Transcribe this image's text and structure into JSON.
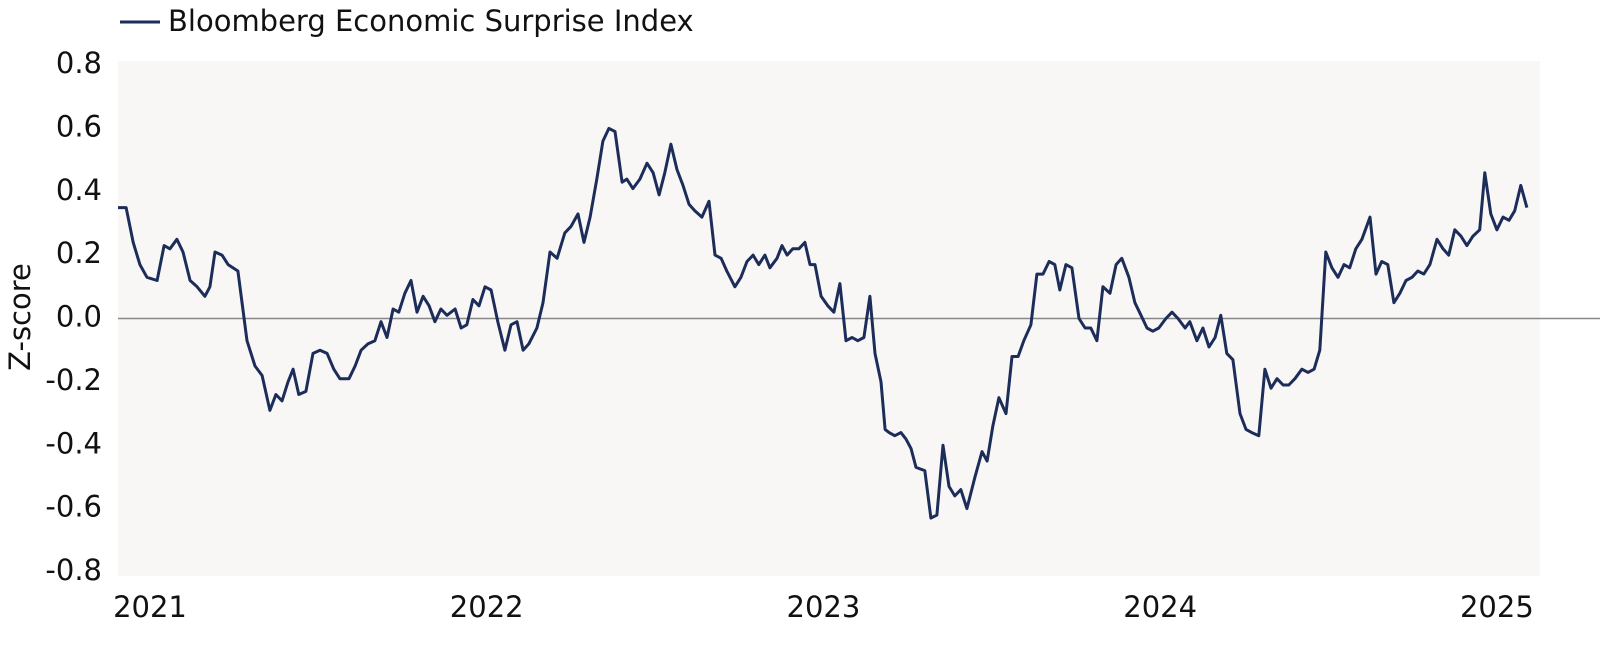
{
  "chart_data": {
    "type": "line",
    "y_label": "Z-score",
    "x": [
      2020.905,
      2020.929,
      2020.95,
      2020.97,
      2020.991,
      2021.021,
      2021.042,
      2021.059,
      2021.08,
      2021.098,
      2021.119,
      2021.14,
      2021.163,
      2021.178,
      2021.193,
      2021.214,
      2021.232,
      2021.261,
      2021.288,
      2021.312,
      2021.333,
      2021.356,
      2021.374,
      2021.392,
      2021.41,
      2021.425,
      2021.442,
      2021.463,
      2021.484,
      2021.505,
      2021.526,
      2021.546,
      2021.564,
      2021.591,
      2021.609,
      2021.627,
      2021.647,
      2021.668,
      2021.686,
      2021.704,
      2021.722,
      2021.739,
      2021.757,
      2021.775,
      2021.793,
      2021.811,
      2021.829,
      2021.846,
      2021.864,
      2021.882,
      2021.906,
      2021.924,
      2021.941,
      2021.959,
      2021.977,
      2021.995,
      2022.013,
      2022.033,
      2022.054,
      2022.072,
      2022.09,
      2022.108,
      2022.125,
      2022.149,
      2022.167,
      2022.188,
      2022.209,
      2022.232,
      2022.25,
      2022.271,
      2022.289,
      2022.307,
      2022.327,
      2022.345,
      2022.363,
      2022.381,
      2022.402,
      2022.416,
      2022.434,
      2022.455,
      2022.476,
      2022.494,
      2022.512,
      2022.529,
      2022.547,
      2022.565,
      2022.583,
      2022.601,
      2022.618,
      2022.639,
      2022.66,
      2022.678,
      2022.696,
      2022.713,
      2022.737,
      2022.755,
      2022.773,
      2022.791,
      2022.808,
      2022.826,
      2022.841,
      2022.862,
      2022.877,
      2022.892,
      2022.909,
      2022.927,
      2022.945,
      2022.96,
      2022.975,
      2022.993,
      2023.013,
      2023.031,
      2023.049,
      2023.067,
      2023.085,
      2023.102,
      2023.12,
      2023.138,
      2023.153,
      2023.171,
      2023.183,
      2023.195,
      2023.212,
      2023.23,
      2023.245,
      2023.26,
      2023.275,
      2023.301,
      2023.319,
      2023.337,
      2023.355,
      2023.373,
      2023.39,
      2023.408,
      2023.426,
      2023.45,
      2023.471,
      2023.486,
      2023.503,
      2023.521,
      2023.542,
      2023.56,
      2023.578,
      2023.595,
      2023.616,
      2023.634,
      2023.652,
      2023.67,
      2023.687,
      2023.702,
      2023.72,
      2023.738,
      2023.759,
      2023.777,
      2023.794,
      2023.812,
      2023.83,
      2023.851,
      2023.869,
      2023.886,
      2023.907,
      2023.925,
      2023.943,
      2023.961,
      2023.978,
      2023.996,
      2024.017,
      2024.035,
      2024.053,
      2024.074,
      2024.088,
      2024.109,
      2024.127,
      2024.145,
      2024.163,
      2024.18,
      2024.198,
      2024.216,
      2024.237,
      2024.255,
      2024.272,
      2024.293,
      2024.311,
      2024.329,
      2024.347,
      2024.365,
      2024.382,
      2024.4,
      2024.421,
      2024.439,
      2024.457,
      2024.474,
      2024.492,
      2024.51,
      2024.528,
      2024.546,
      2024.563,
      2024.581,
      2024.599,
      2024.623,
      2024.641,
      2024.658,
      2024.676,
      2024.694,
      2024.712,
      2024.73,
      2024.748,
      2024.765,
      2024.783,
      2024.801,
      2024.822,
      2024.84,
      2024.857,
      2024.875,
      2024.893,
      2024.911,
      2024.929,
      2024.949,
      2024.964,
      2024.982,
      2025.0,
      2025.018,
      2025.036,
      2025.053,
      2025.071,
      2025.089
    ],
    "series": [
      {
        "name": "Bloomberg Economic Surprise Index",
        "color": "#1c2d5a",
        "values": [
          0.35,
          0.35,
          0.24,
          0.17,
          0.13,
          0.12,
          0.23,
          0.22,
          0.25,
          0.21,
          0.12,
          0.1,
          0.07,
          0.1,
          0.21,
          0.2,
          0.17,
          0.15,
          -0.07,
          -0.15,
          -0.18,
          -0.29,
          -0.24,
          -0.26,
          -0.2,
          -0.16,
          -0.24,
          -0.23,
          -0.11,
          -0.1,
          -0.11,
          -0.16,
          -0.19,
          -0.19,
          -0.15,
          -0.1,
          -0.08,
          -0.07,
          -0.01,
          -0.06,
          0.03,
          0.02,
          0.08,
          0.12,
          0.02,
          0.07,
          0.04,
          -0.01,
          0.03,
          0.01,
          0.03,
          -0.03,
          -0.02,
          0.06,
          0.04,
          0.1,
          0.09,
          -0.01,
          -0.1,
          -0.02,
          -0.01,
          -0.1,
          -0.08,
          -0.03,
          0.05,
          0.21,
          0.19,
          0.27,
          0.29,
          0.33,
          0.24,
          0.32,
          0.44,
          0.56,
          0.6,
          0.59,
          0.43,
          0.44,
          0.41,
          0.44,
          0.49,
          0.46,
          0.39,
          0.46,
          0.55,
          0.47,
          0.42,
          0.36,
          0.34,
          0.32,
          0.37,
          0.2,
          0.19,
          0.15,
          0.1,
          0.13,
          0.18,
          0.2,
          0.17,
          0.2,
          0.16,
          0.19,
          0.23,
          0.2,
          0.22,
          0.22,
          0.24,
          0.17,
          0.17,
          0.07,
          0.04,
          0.02,
          0.11,
          -0.07,
          -0.06,
          -0.07,
          -0.06,
          0.07,
          -0.11,
          -0.2,
          -0.35,
          -0.36,
          -0.37,
          -0.36,
          -0.38,
          -0.41,
          -0.47,
          -0.48,
          -0.63,
          -0.62,
          -0.4,
          -0.53,
          -0.56,
          -0.54,
          -0.6,
          -0.5,
          -0.42,
          -0.45,
          -0.34,
          -0.25,
          -0.3,
          -0.12,
          -0.12,
          -0.07,
          -0.02,
          0.14,
          0.14,
          0.18,
          0.17,
          0.09,
          0.17,
          0.16,
          0.0,
          -0.03,
          -0.03,
          -0.07,
          0.1,
          0.08,
          0.17,
          0.19,
          0.13,
          0.05,
          0.01,
          -0.03,
          -0.04,
          -0.03,
          0.0,
          0.02,
          0.0,
          -0.03,
          -0.01,
          -0.07,
          -0.03,
          -0.09,
          -0.06,
          0.01,
          -0.11,
          -0.13,
          -0.3,
          -0.35,
          -0.36,
          -0.37,
          -0.16,
          -0.22,
          -0.19,
          -0.21,
          -0.21,
          -0.19,
          -0.16,
          -0.17,
          -0.16,
          -0.1,
          0.21,
          0.16,
          0.13,
          0.17,
          0.16,
          0.22,
          0.25,
          0.32,
          0.14,
          0.18,
          0.17,
          0.05,
          0.08,
          0.12,
          0.13,
          0.15,
          0.14,
          0.17,
          0.25,
          0.22,
          0.2,
          0.28,
          0.26,
          0.23,
          0.26,
          0.28,
          0.46,
          0.33,
          0.28,
          0.32,
          0.31,
          0.34,
          0.42,
          0.35
        ]
      }
    ],
    "xlim": [
      2020.905,
      2025.128
    ],
    "xticks": [
      2021,
      2022,
      2023,
      2024,
      2025
    ],
    "ylim": [
      -0.8,
      0.8
    ],
    "yticks": [
      0.8,
      0.6,
      0.4,
      0.2,
      {
        "value": 0,
        "label": "0.0"
      },
      -0.2,
      -0.4,
      -0.6,
      -0.8
    ],
    "zero_line": true,
    "legend": "top-left",
    "background": "#f9f7f6"
  }
}
